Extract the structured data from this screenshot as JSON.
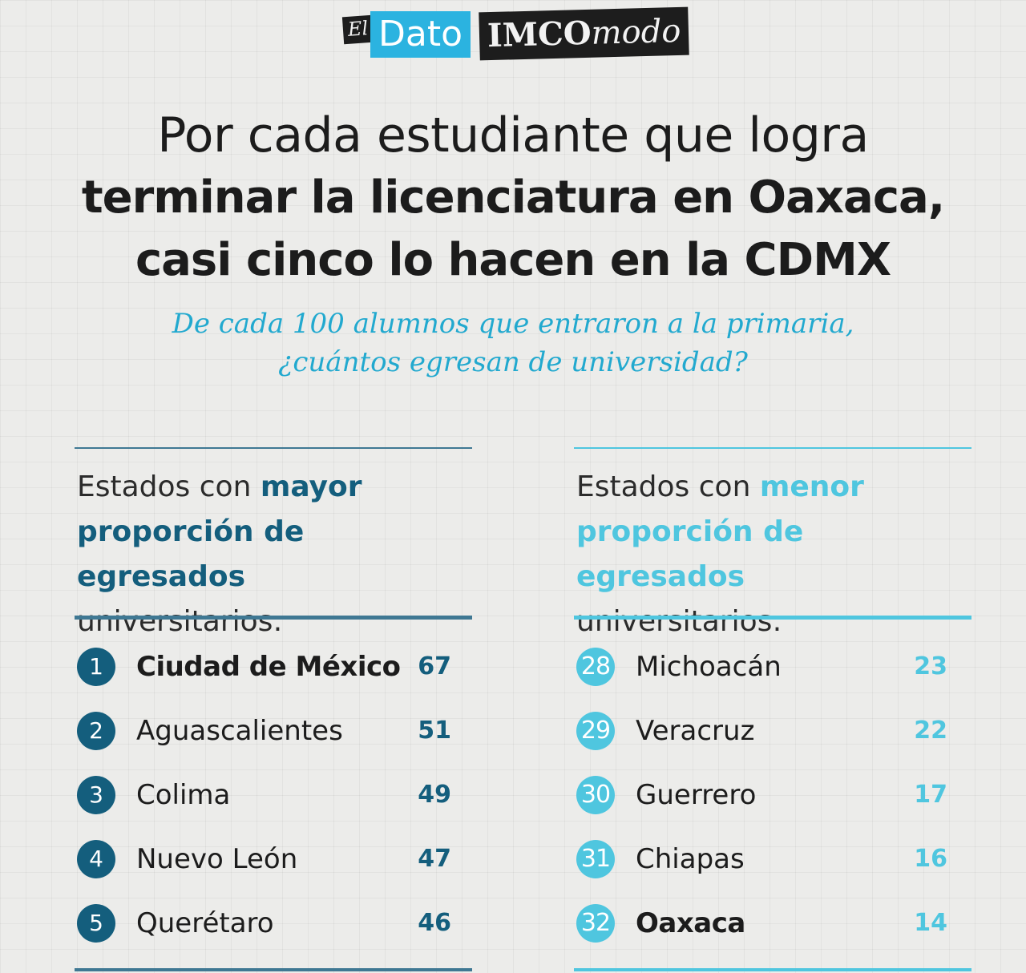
{
  "logo": {
    "el": "El",
    "dato": "Dato",
    "imco": "IMCO",
    "modo": "modo"
  },
  "title": {
    "line1": "Por cada estudiante que logra",
    "line2": "terminar la licenciatura en Oaxaca,",
    "line3": "casi cinco lo hacen en la CDMX"
  },
  "subtitle": {
    "line1": "De cada 100 alumnos que entraron a la primaria,",
    "line2": "¿cuántos egresan de universidad?"
  },
  "colors": {
    "dark_teal": "#145e7d",
    "light_cyan": "#4fc6df",
    "subtitle_cyan": "#22a9cf",
    "logo_blue": "#2bb3e0"
  },
  "left_panel": {
    "heading_prefix": "Estados con ",
    "heading_highlight_1": "mayor",
    "heading_highlight_2": "proporción de egresados",
    "heading_suffix": "universitarios:",
    "rows": [
      {
        "rank": "1",
        "state": "Ciudad de México",
        "value": "67"
      },
      {
        "rank": "2",
        "state": "Aguascalientes",
        "value": "51"
      },
      {
        "rank": "3",
        "state": "Colima",
        "value": "49"
      },
      {
        "rank": "4",
        "state": "Nuevo León",
        "value": "47"
      },
      {
        "rank": "5",
        "state": "Querétaro",
        "value": "46"
      }
    ]
  },
  "right_panel": {
    "heading_prefix": "Estados con ",
    "heading_highlight_1": "menor",
    "heading_highlight_2": "proporción de egresados",
    "heading_suffix": "universitarios:",
    "rows": [
      {
        "rank": "28",
        "state": "Michoacán",
        "value": "23"
      },
      {
        "rank": "29",
        "state": "Veracruz",
        "value": "22"
      },
      {
        "rank": "30",
        "state": "Guerrero",
        "value": "17"
      },
      {
        "rank": "31",
        "state": "Chiapas",
        "value": "16"
      },
      {
        "rank": "32",
        "state": "Oaxaca",
        "value": "14"
      }
    ]
  }
}
